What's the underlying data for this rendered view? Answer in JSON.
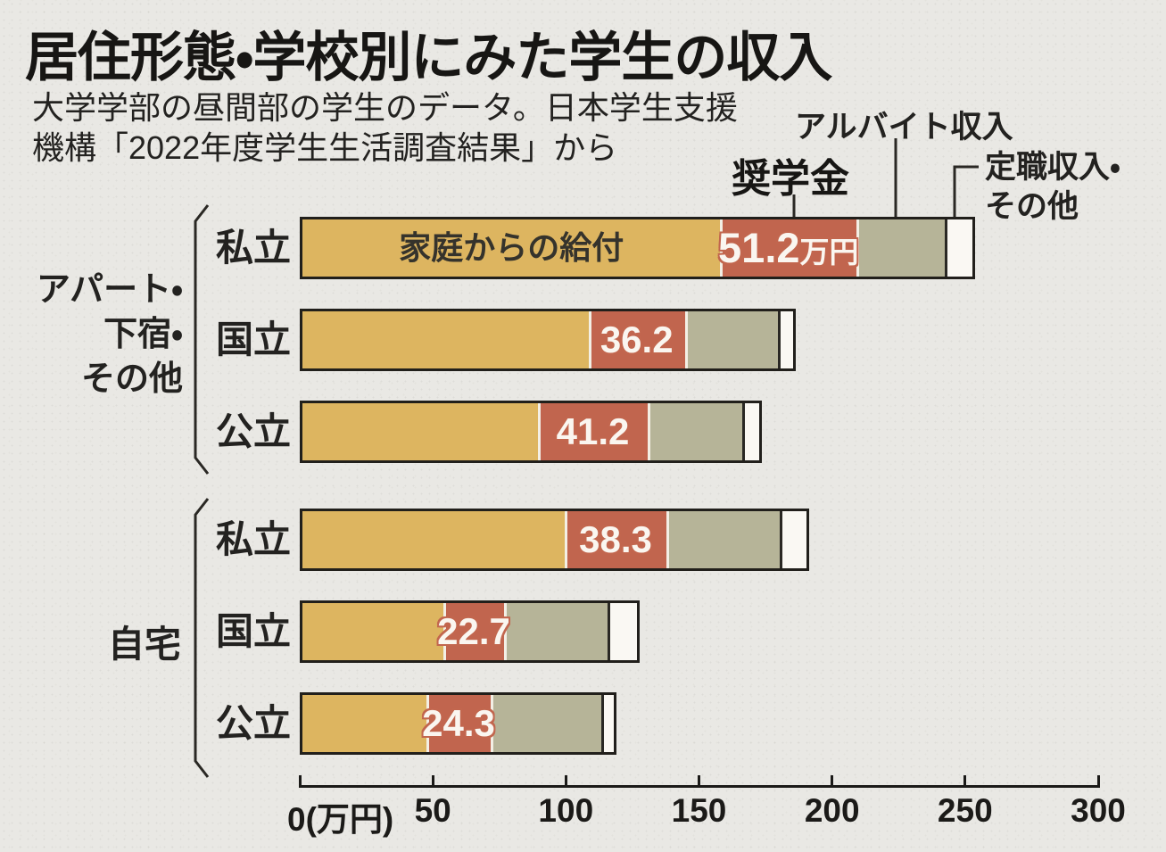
{
  "page": {
    "title": "居住形態・学校別にみた学生の収入",
    "subtitle_lines": [
      "大学学部の昼間部の学生のデータ。日本学生支援",
      "機構「2022年度学生生活調査結果」から"
    ]
  },
  "legend": {
    "scholarship": "奨学金",
    "parttime": "アルバイト収入",
    "fulltime_other_lines": [
      "定職収入・",
      "その他"
    ]
  },
  "groups": [
    {
      "label_lines": [
        "アパート・",
        "下宿・",
        "その他"
      ]
    },
    {
      "label_lines": [
        "自宅"
      ]
    }
  ],
  "rows": [
    {
      "school": "私立",
      "family_label": "家庭からの給付",
      "scholarship_label": "51.2",
      "scholarship_unit": "万円"
    },
    {
      "school": "国立",
      "scholarship_label": "36.2",
      "scholarship_unit": ""
    },
    {
      "school": "公立",
      "scholarship_label": "41.2",
      "scholarship_unit": ""
    },
    {
      "school": "私立",
      "scholarship_label": "38.3",
      "scholarship_unit": ""
    },
    {
      "school": "国立",
      "scholarship_label": "22.7",
      "scholarship_unit": ""
    },
    {
      "school": "公立",
      "scholarship_label": "24.3",
      "scholarship_unit": ""
    }
  ],
  "axis": {
    "ticks": [
      {
        "value": 0,
        "label": "0(万円)"
      },
      {
        "value": 50,
        "label": "50"
      },
      {
        "value": 100,
        "label": "100"
      },
      {
        "value": 150,
        "label": "150"
      },
      {
        "value": 200,
        "label": "200"
      },
      {
        "value": 250,
        "label": "250"
      },
      {
        "value": 300,
        "label": "300"
      }
    ]
  },
  "colors": {
    "family": "#ddb560",
    "scholarship": "#c1654e",
    "parttime": "#b6b498",
    "other": "#faf8f3",
    "bar_border": "#211f1b",
    "ink": "#1b1a18",
    "paper": "#e9e8e4",
    "value_text": "#faf6f0"
  },
  "chart_data": {
    "type": "bar",
    "orientation": "horizontal",
    "stacked": true,
    "title": "居住形態・学校別にみた学生の収入",
    "subtitle": "大学学部の昼間部の学生のデータ。日本学生支援機構「2022年度学生生活調査結果」から",
    "categories": [
      "私立",
      "国立",
      "公立",
      "私立",
      "国立",
      "公立"
    ],
    "category_groups": [
      "アパート・下宿・その他",
      "アパート・下宿・その他",
      "アパート・下宿・その他",
      "自宅",
      "自宅",
      "自宅"
    ],
    "series": [
      {
        "name": "家庭からの給付",
        "values": [
          157,
          107.5,
          88.5,
          98.5,
          53,
          46.5
        ]
      },
      {
        "name": "奨学金",
        "values": [
          51.2,
          36.2,
          41.2,
          38.3,
          22.7,
          24.3
        ]
      },
      {
        "name": "アルバイト収入",
        "values": [
          33,
          35,
          35.5,
          42.5,
          39,
          41.5
        ]
      },
      {
        "name": "定職収入・その他",
        "values": [
          10.5,
          5.5,
          6.3,
          10,
          11,
          4.6
        ]
      }
    ],
    "value_labels": {
      "奨学金": [
        "51.2万円",
        "36.2",
        "41.2",
        "38.3",
        "22.7",
        "24.3"
      ]
    },
    "xlabel": "万円",
    "xlim": [
      0,
      300
    ],
    "x_ticks": [
      0,
      50,
      100,
      150,
      200,
      250,
      300
    ],
    "grid": false,
    "legend_position": "top-right",
    "notes_estimated": "奨学金 values printed on chart; other segment values estimated from bar lengths"
  }
}
